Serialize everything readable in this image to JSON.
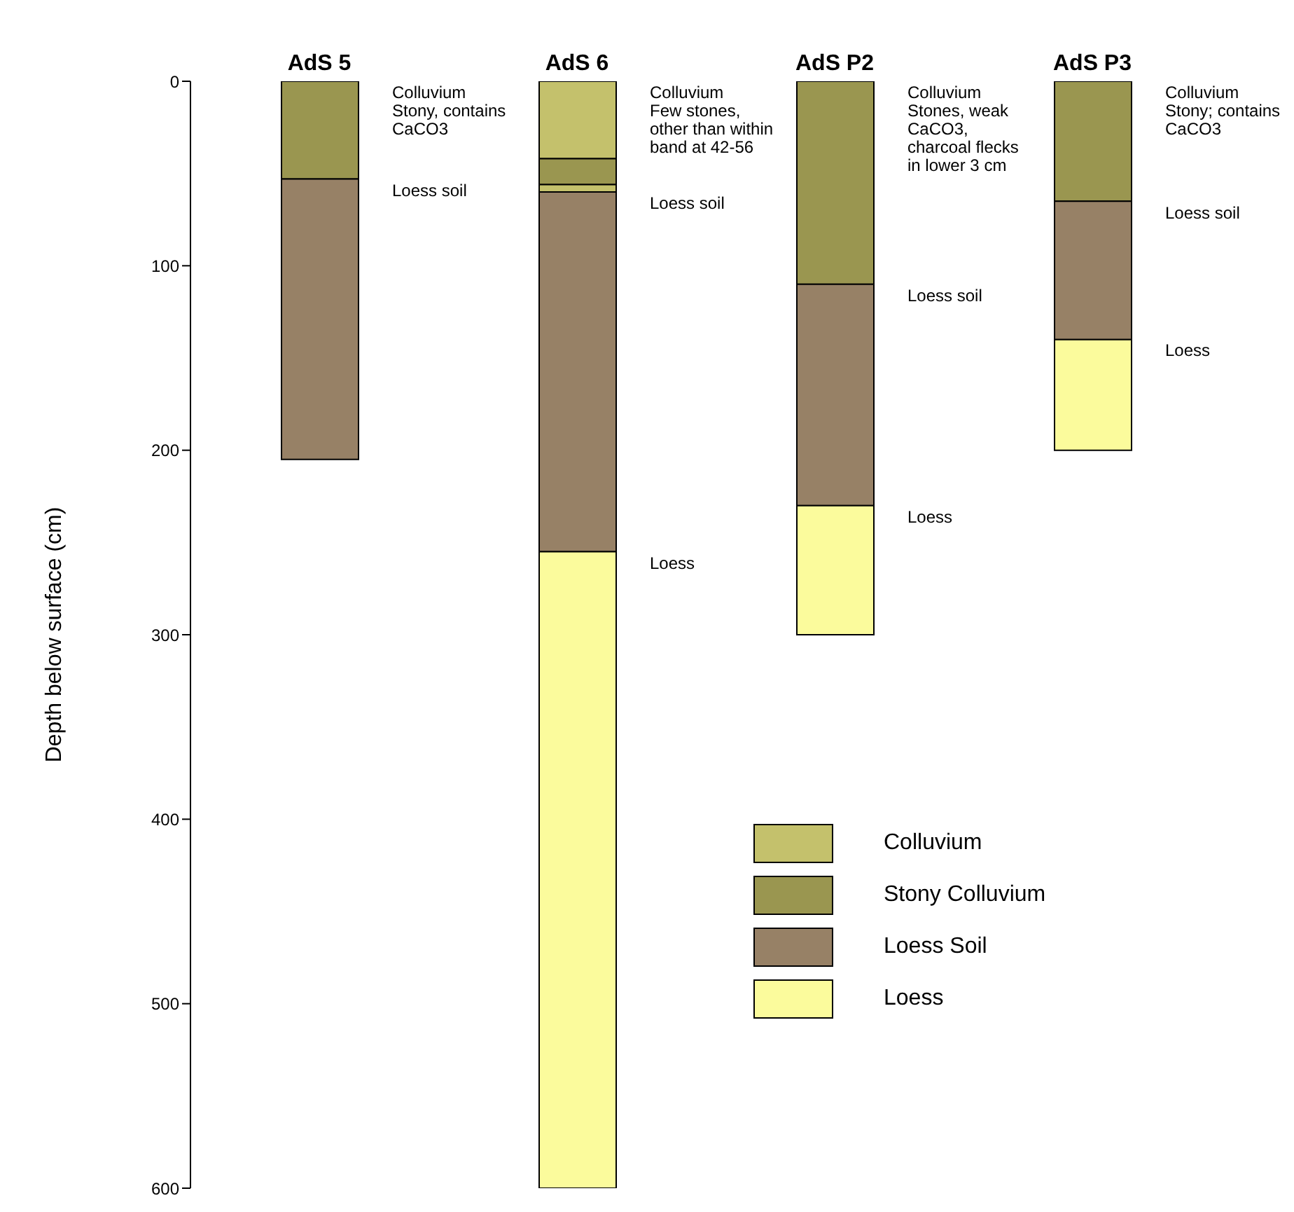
{
  "chart_data": {
    "type": "bar",
    "stacked": true,
    "ylabel": "Depth below surface (cm)",
    "categories": [
      "AdS 5",
      "AdS 6",
      "AdS P2",
      "AdS P3"
    ],
    "series": [
      {
        "name": "Colluvium",
        "color": "#c4c16c",
        "values": [
          null,
          42,
          null,
          null
        ]
      },
      {
        "name": "Stony Colluvium",
        "color": "#9a9650",
        "values": [
          53,
          14,
          110,
          65
        ]
      },
      {
        "color": "#c4c16c",
        "values": [
          null,
          4,
          null,
          null
        ]
      },
      {
        "name": "Loess Soil",
        "color": "#978166",
        "values": [
          152,
          195,
          120,
          75
        ]
      },
      {
        "name": "Loess",
        "color": "#fbfb9c",
        "values": [
          null,
          345,
          70,
          60
        ]
      }
    ],
    "ylim": [
      600,
      0
    ],
    "yticks": [
      0,
      100,
      200,
      300,
      400,
      500,
      600
    ],
    "grid": false,
    "legend": "right",
    "annotations": [
      "Colluvium\nStony, contains\nCaCO3",
      "Loess soil",
      "Colluvium\nFew stones,\nother than within\nband at 42-56",
      "Loess soil",
      "Loess",
      "Colluvium\nStones, weak\nCaCO3,\ncharcoal flecks\nin lower 3 cm",
      "Loess soil",
      "Loess",
      "Colluvium\nStony; contains\nCaCO3",
      "Loess soil",
      "Loess"
    ]
  }
}
